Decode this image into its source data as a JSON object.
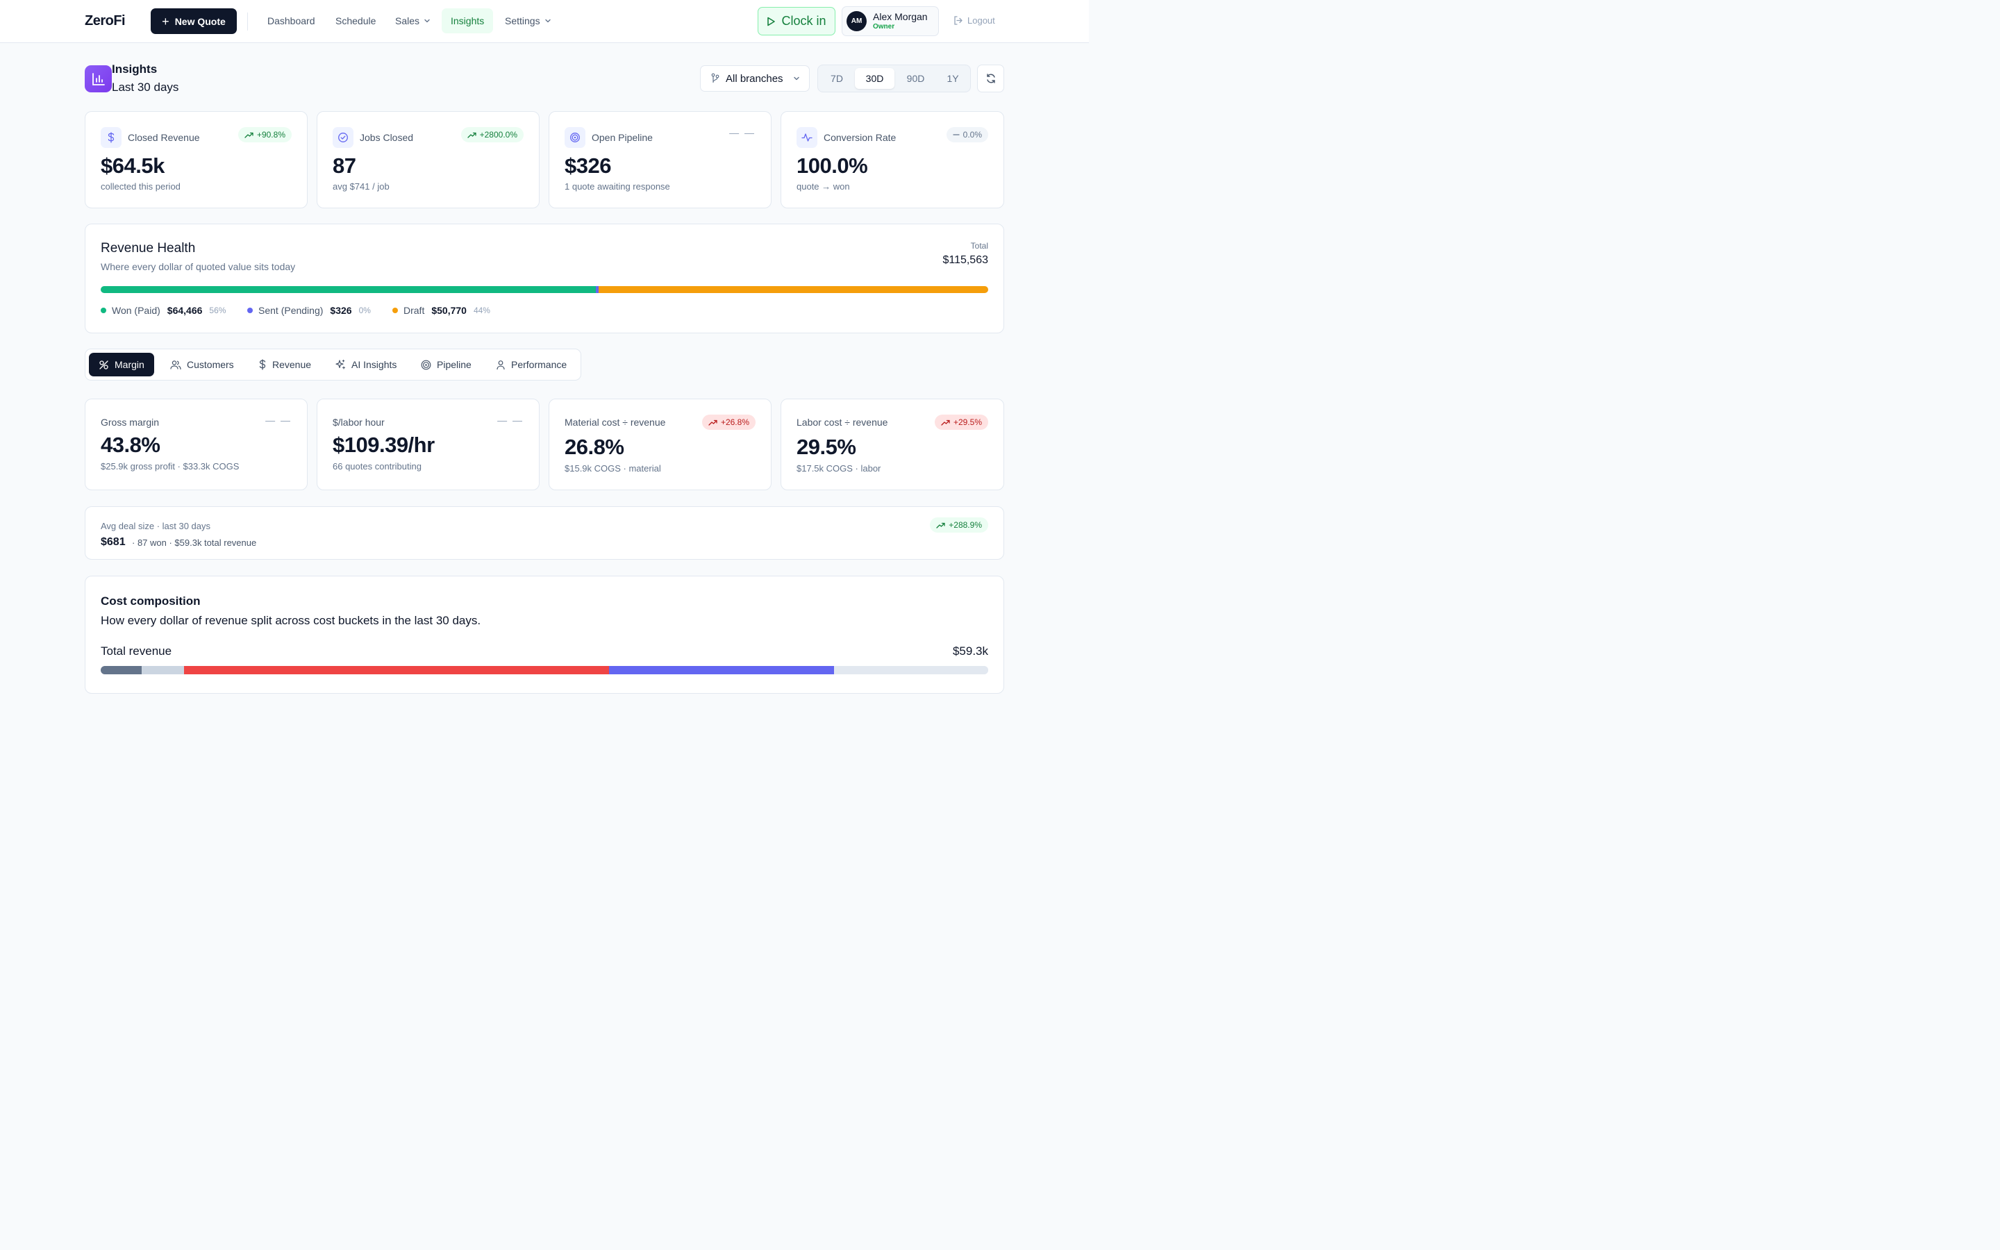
{
  "app": {
    "logo": "ZeroFi"
  },
  "header": {
    "new_quote": "New Quote",
    "nav": {
      "dashboard": "Dashboard",
      "schedule": "Schedule",
      "sales": "Sales",
      "insights": "Insights",
      "settings": "Settings"
    },
    "clock_in": "Clock in",
    "user": {
      "initials": "AM",
      "name": "Alex Morgan",
      "role": "Owner"
    },
    "logout": "Logout"
  },
  "page": {
    "title": "Insights",
    "subtitle": "Last 30 days",
    "branch_select": "All branches",
    "ranges": [
      "7D",
      "30D",
      "90D",
      "1Y"
    ],
    "active_range": "30D"
  },
  "kpis": [
    {
      "label": "Closed Revenue",
      "value": "$64.5k",
      "sub": "collected this period",
      "badge": "+90.8%",
      "trend": "up",
      "icon": "dollar-icon"
    },
    {
      "label": "Jobs Closed",
      "value": "87",
      "sub": "avg $741 / job",
      "badge": "+2800.0%",
      "trend": "up",
      "icon": "check-circle-icon"
    },
    {
      "label": "Open Pipeline",
      "value": "$326",
      "sub": "1 quote awaiting response",
      "badge": "— —",
      "trend": "none",
      "icon": "target-icon"
    },
    {
      "label": "Conversion Rate",
      "value": "100.0%",
      "sub": "quote → won",
      "badge": "0.0%",
      "trend": "flat",
      "icon": "activity-icon"
    }
  ],
  "revenue_health": {
    "title": "Revenue Health",
    "subtitle": "Where every dollar of quoted value sits today",
    "total_label": "Total",
    "total": "$115,563",
    "segments": [
      {
        "name": "Won (Paid)",
        "value": "$64,466",
        "pct": "56%",
        "fraction": 0.558,
        "color": "#10b981"
      },
      {
        "name": "Sent (Pending)",
        "value": "$326",
        "pct": "0%",
        "fraction": 0.003,
        "color": "#6366f1"
      },
      {
        "name": "Draft",
        "value": "$50,770",
        "pct": "44%",
        "fraction": 0.439,
        "color": "#f59e0b"
      }
    ]
  },
  "tabs": [
    {
      "label": "Margin",
      "icon": "percent-icon",
      "active": true
    },
    {
      "label": "Customers",
      "icon": "users-icon",
      "active": false
    },
    {
      "label": "Revenue",
      "icon": "dollar-icon",
      "active": false
    },
    {
      "label": "AI Insights",
      "icon": "sparkles-icon",
      "active": false
    },
    {
      "label": "Pipeline",
      "icon": "target-icon",
      "active": false
    },
    {
      "label": "Performance",
      "icon": "user-icon",
      "active": false
    }
  ],
  "margin_kpis": [
    {
      "label": "Gross margin",
      "value": "43.8%",
      "sub": "$25.9k gross profit · $33.3k COGS",
      "badge": "— —",
      "trend": "none"
    },
    {
      "label": "$/labor hour",
      "value": "$109.39/hr",
      "sub": "66 quotes contributing",
      "badge": "— —",
      "trend": "none"
    },
    {
      "label": "Material cost ÷ revenue",
      "value": "26.8%",
      "sub": "$15.9k COGS · material",
      "badge": "+26.8%",
      "trend": "up-bad"
    },
    {
      "label": "Labor cost ÷ revenue",
      "value": "29.5%",
      "sub": "$17.5k COGS · labor",
      "badge": "+29.5%",
      "trend": "up-bad"
    }
  ],
  "avg_deal": {
    "label": "Avg deal size · last 30 days",
    "value": "$681",
    "meta": "· 87 won · $59.3k total revenue",
    "badge": "+288.9%"
  },
  "cost_composition": {
    "title": "Cost composition",
    "subtitle": "How every dollar of revenue split across cost buckets in the last 30 days.",
    "total_label": "Total revenue",
    "total": "$59.3k",
    "segments": [
      {
        "fraction": 0.046,
        "color": "#64748b"
      },
      {
        "fraction": 0.048,
        "color": "#cbd5e1"
      },
      {
        "fraction": 0.479,
        "color": "#ef4444"
      },
      {
        "fraction": 0.253,
        "color": "#6366f1"
      },
      {
        "fraction": 0.174,
        "color": "#e2e8f0"
      }
    ]
  }
}
